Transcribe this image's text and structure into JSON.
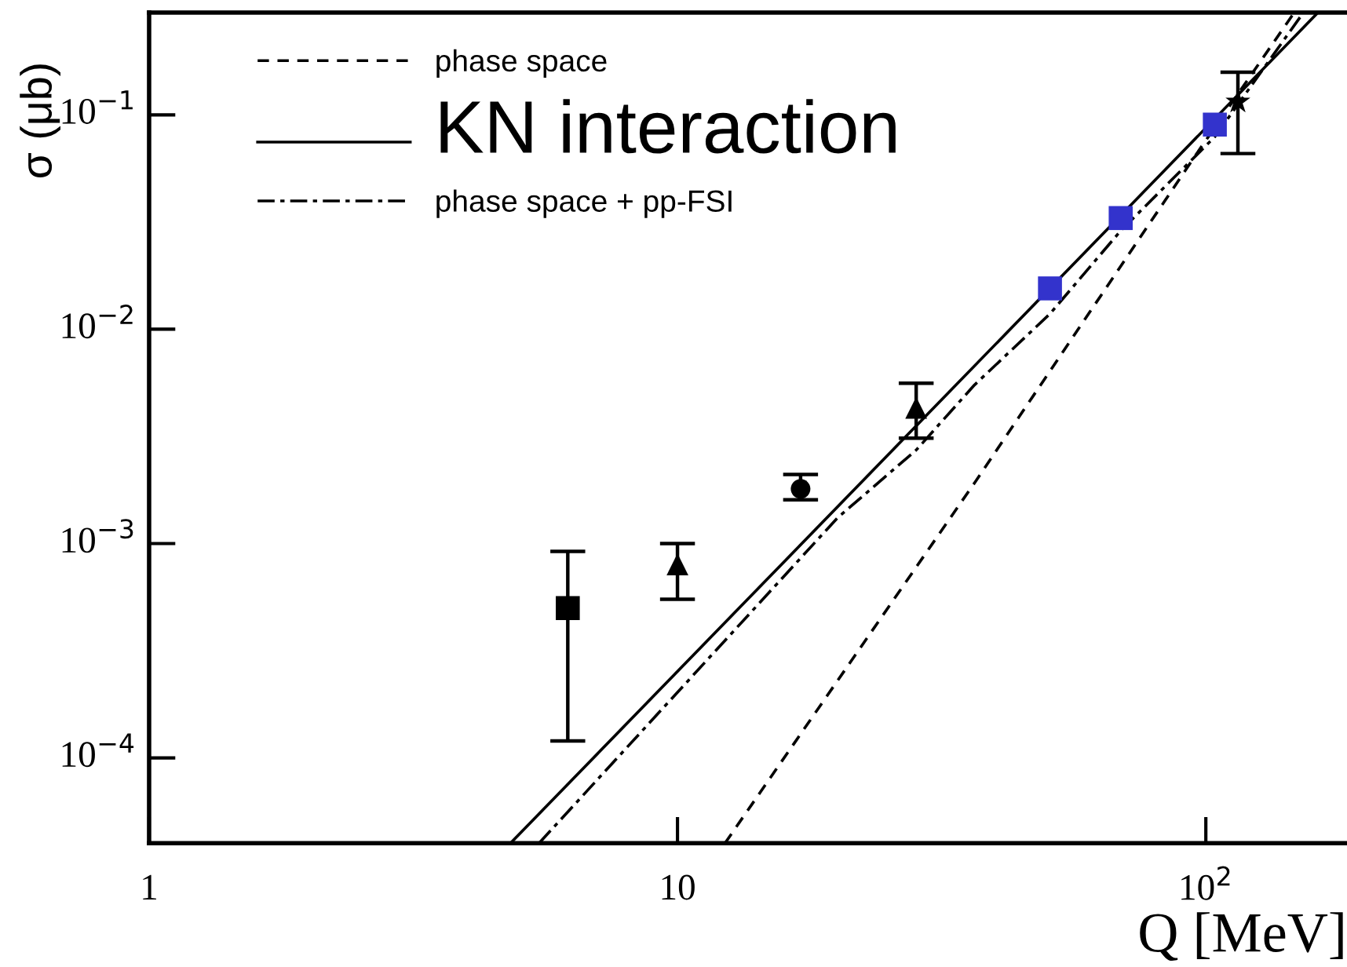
{
  "chart_data": {
    "type": "scatter",
    "xlabel": "Q [MeV]",
    "ylabel": "σ (μb)",
    "log": "xy",
    "xlim": [
      1,
      185
    ],
    "ylim": [
      4e-05,
      0.3
    ],
    "xticks": [
      1,
      10,
      {
        "value": 100,
        "label": "10$^{2}$"
      }
    ],
    "yticks": [
      {
        "value": 0.0001,
        "label": "10$^{−4}$"
      },
      {
        "value": 0.001,
        "label": "10$^{−3}$"
      },
      {
        "value": 0.01,
        "label": "10$^{−2}$"
      },
      {
        "value": 0.1,
        "label": "10$^{−1}$"
      }
    ],
    "grid": false,
    "legend": "top left",
    "series": [
      {
        "name": "phase space",
        "type": "line",
        "line_style": "dashed",
        "color": "#000000",
        "x": [
          12.3,
          36.5,
          95.3,
          147
        ],
        "values": [
          4e-05,
          0.00192,
          0.064,
          0.3
        ]
      },
      {
        "name": "KN interaction",
        "type": "line",
        "line_style": "solid",
        "color": "#000000",
        "x": [
          4.83,
          163
        ],
        "values": [
          4e-05,
          0.3
        ]
      },
      {
        "name": "phase space + pp-FSI",
        "type": "line",
        "line_style": "dashdot",
        "color": "#000000",
        "x": [
          5.47,
          20.1,
          28.3,
          36.5,
          50.7,
          69.1,
          104,
          153
        ],
        "values": [
          4e-05,
          0.00132,
          0.00273,
          0.0055,
          0.0118,
          0.0289,
          0.079,
          0.3
        ]
      },
      {
        "marker": "square",
        "color": "#000000",
        "x": [
          6.2
        ],
        "values": [
          0.0005
        ],
        "errors": [
          [
            0.00012,
            0.00092
          ]
        ]
      },
      {
        "marker": "triangle",
        "color": "#000000",
        "x": [
          10,
          28.3
        ],
        "values": [
          0.0008,
          0.0043
        ],
        "errors": [
          [
            0.00055,
            0.001
          ],
          [
            0.0031,
            0.0056
          ]
        ]
      },
      {
        "marker": "circle",
        "color": "#000000",
        "x": [
          17.1
        ],
        "values": [
          0.0018
        ],
        "errors": [
          [
            0.0016,
            0.0021
          ]
        ]
      },
      {
        "marker": "square",
        "color": "#3333cc",
        "x": [
          50.7,
          69,
          104
        ],
        "values": [
          0.0155,
          0.033,
          0.09
        ]
      },
      {
        "marker": "star",
        "color": "#000000",
        "x": [
          115
        ],
        "values": [
          0.115
        ],
        "errors": [
          [
            0.066,
            0.158
          ]
        ]
      }
    ]
  }
}
